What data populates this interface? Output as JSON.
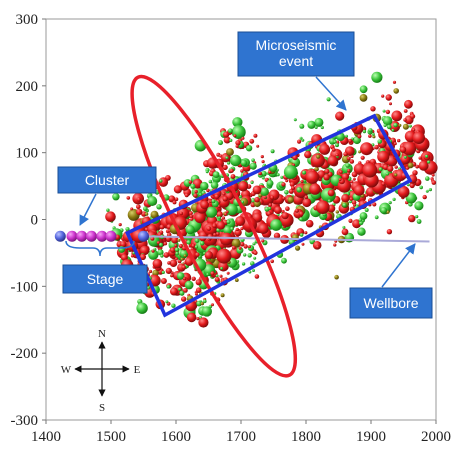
{
  "chart_data": {
    "type": "scatter",
    "title": "",
    "xlabel": "",
    "ylabel": "",
    "xlim": [
      1400,
      2000
    ],
    "ylim": [
      -300,
      300
    ],
    "x_ticks": [
      1400,
      1500,
      1600,
      1700,
      1800,
      1900,
      2000
    ],
    "y_ticks": [
      300,
      200,
      100,
      0,
      -100,
      -200,
      -300
    ],
    "x_tick_labels": [
      "1400",
      "1500",
      "1600",
      "1700",
      "1800",
      "1900",
      "2000"
    ],
    "y_tick_labels": [
      "300",
      "200",
      "100",
      "0",
      "-100",
      "-200",
      "-300"
    ],
    "grid": false,
    "colors": {
      "event_red": "#e3191b",
      "event_green": "#3cc43c",
      "event_olive": "#8a7a10",
      "cluster_purple": "#cc33cc",
      "cluster_blue": "#5566dd",
      "callout_fill": "#2f74d0",
      "box_blue": "#2233dd",
      "ellipse_red": "#e8202a",
      "wellbore": "#a9a9d8"
    },
    "wellbore": {
      "x": [
        1545,
        1990
      ],
      "y": [
        -25,
        -33
      ]
    },
    "cluster_points": [
      {
        "x": 1422,
        "y": -25,
        "color": "#5566dd"
      },
      {
        "x": 1440,
        "y": -25,
        "color": "#cc33cc"
      },
      {
        "x": 1455,
        "y": -25,
        "color": "#cc33cc"
      },
      {
        "x": 1470,
        "y": -25,
        "color": "#cc33cc"
      },
      {
        "x": 1486,
        "y": -25,
        "color": "#cc33cc"
      },
      {
        "x": 1500,
        "y": -25,
        "color": "#cc33cc"
      },
      {
        "x": 1550,
        "y": -25,
        "color": "#5566dd"
      }
    ],
    "ellipse": {
      "cx": 1658,
      "cy": -10,
      "rx": 52,
      "ry": 250,
      "rotation_deg": -27
    },
    "box_corners": [
      [
        1525,
        -20
      ],
      [
        1905,
        155
      ],
      [
        1960,
        58
      ],
      [
        1583,
        -143
      ]
    ],
    "events": {
      "count": 1100,
      "center_line": {
        "x0": 1520,
        "y0": -55,
        "x1": 1980,
        "y1": 110
      },
      "band_halfwidth": 80,
      "ellipse_cluster_count": 180
    }
  },
  "annotations": {
    "microseismic_event": "Microseismic\nevent",
    "cluster": "Cluster",
    "stage": "Stage",
    "wellbore": "Wellbore"
  },
  "compass": {
    "n": "N",
    "s": "S",
    "e": "E",
    "w": "W"
  }
}
